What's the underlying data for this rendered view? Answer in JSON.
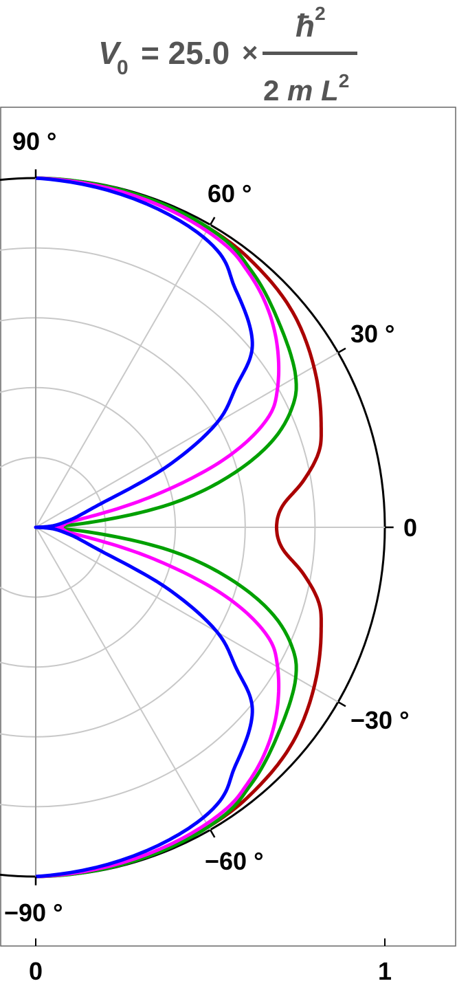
{
  "title": {
    "lhs": "V",
    "lhs_sub": "0",
    "equals": "= 25.0",
    "times": "×",
    "numerator": "ħ",
    "numerator_exp": "2",
    "denominator_coef": "2",
    "denominator_m": "m",
    "denominator_L": "L",
    "denominator_exp": "2"
  },
  "chart_data": {
    "type": "polar_line",
    "r_range": [
      0,
      1
    ],
    "theta_range_deg": [
      -90,
      90
    ],
    "angular_ticks": [
      {
        "deg": 90,
        "label": "90 °"
      },
      {
        "deg": 60,
        "label": "60 °"
      },
      {
        "deg": 30,
        "label": "30 °"
      },
      {
        "deg": 0,
        "label": "0"
      },
      {
        "deg": -30,
        "label": "−30 °"
      },
      {
        "deg": -60,
        "label": "−60 °"
      },
      {
        "deg": -90,
        "label": "−90 °"
      }
    ],
    "x_ticks": [
      {
        "value": 0,
        "label": "0"
      },
      {
        "value": 1,
        "label": "1"
      }
    ],
    "grid": true,
    "series": [
      {
        "color": "#aa0000",
        "r": [
          0.69,
          0.71,
          0.78,
          0.84,
          0.87,
          0.92,
          0.96,
          0.98,
          0.99,
          1.0
        ],
        "theta_deg": [
          0,
          5,
          10,
          15,
          20,
          30,
          40,
          50,
          60,
          90
        ]
      },
      {
        "color": "#00a000",
        "r": [
          0.0,
          0.15,
          0.4,
          0.58,
          0.72,
          0.81,
          0.86,
          0.91,
          0.96,
          0.99,
          1.0
        ],
        "theta_deg": [
          0,
          5,
          10,
          15,
          20,
          25,
          30,
          40,
          50,
          60,
          90
        ]
      },
      {
        "color": "#ff00ff",
        "r": [
          0.0,
          0.07,
          0.08,
          0.12,
          0.35,
          0.58,
          0.73,
          0.8,
          0.89,
          0.95,
          0.98,
          1.0
        ],
        "theta_deg": [
          0,
          2,
          5,
          10,
          15,
          20,
          25,
          30,
          40,
          50,
          60,
          90
        ]
      },
      {
        "color": "#0000ff",
        "r": [
          0.0,
          0.05,
          0.1,
          0.2,
          0.42,
          0.6,
          0.7,
          0.81,
          0.89,
          0.96,
          1.0
        ],
        "theta_deg": [
          0,
          5,
          12,
          20,
          25,
          30,
          35,
          40,
          50,
          60,
          90
        ]
      }
    ]
  }
}
